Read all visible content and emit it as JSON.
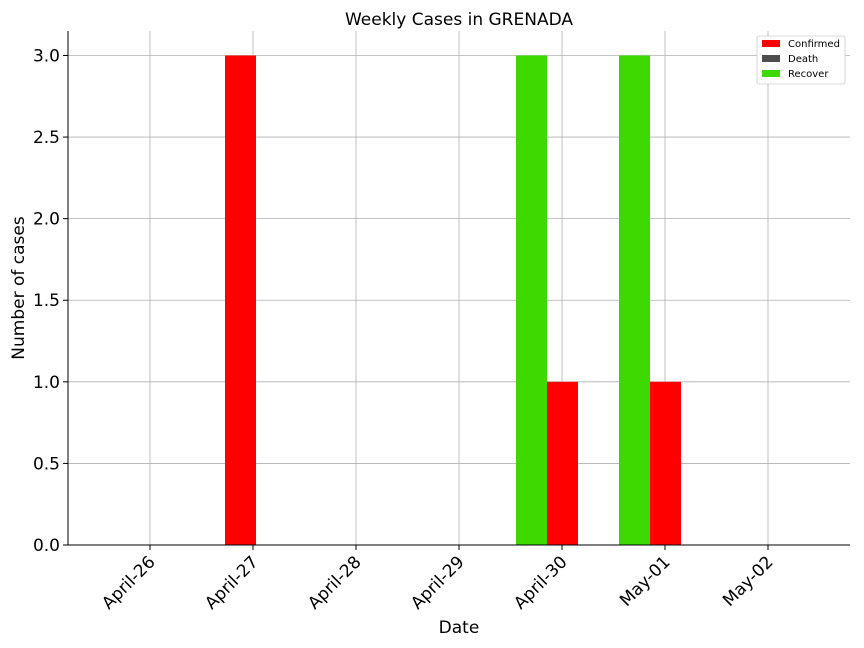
{
  "chart_data": {
    "type": "bar",
    "title": "Weekly Cases in GRENADA",
    "xlabel": "Date",
    "ylabel": "Number of cases",
    "categories": [
      "April-26",
      "April-27",
      "April-28",
      "April-29",
      "April-30",
      "May-01",
      "May-02"
    ],
    "series": [
      {
        "name": "Confirmed",
        "color": "#ff0000",
        "values": [
          0,
          3,
          0,
          0,
          1,
          1,
          0
        ]
      },
      {
        "name": "Death",
        "color": "#4d4d4d",
        "values": [
          0,
          0,
          0,
          0,
          0,
          0,
          0
        ]
      },
      {
        "name": "Recover",
        "color": "#3dd900",
        "values": [
          0,
          0,
          0,
          0,
          3,
          3,
          0
        ]
      }
    ],
    "yticks": [
      "0.0",
      "0.5",
      "1.0",
      "1.5",
      "2.0",
      "2.5",
      "3.0"
    ],
    "ylim": [
      0,
      3.15
    ],
    "grid": true,
    "legend_position": "top-right"
  }
}
